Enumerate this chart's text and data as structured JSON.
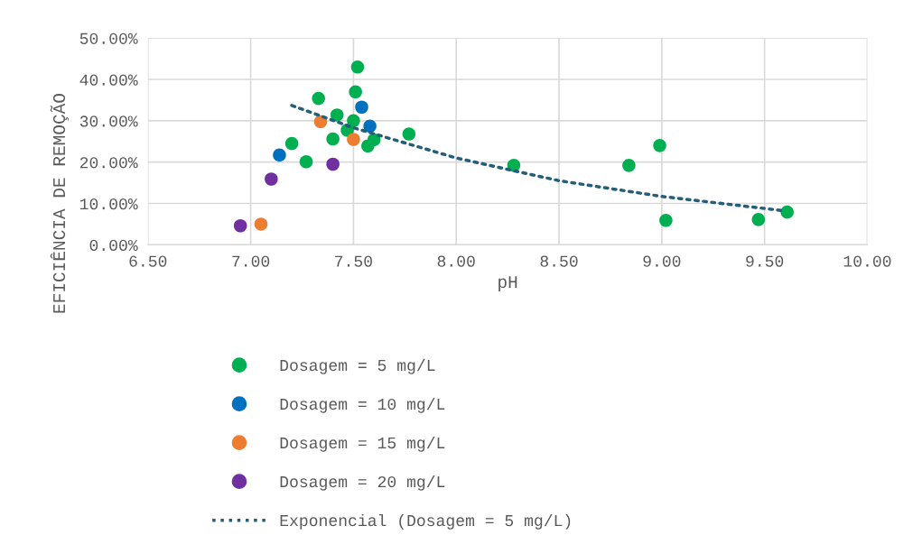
{
  "chart_data": {
    "type": "scatter",
    "xlabel": "pH",
    "ylabel": "EFICIÊNCIA DE REMOÇÃO",
    "xlim": [
      6.5,
      10.0
    ],
    "xticks": [
      {
        "value": 6.5,
        "label": "6.50"
      },
      {
        "value": 7.0,
        "label": "7.00"
      },
      {
        "value": 7.5,
        "label": "7.50"
      },
      {
        "value": 8.0,
        "label": "8.00"
      },
      {
        "value": 8.5,
        "label": "8.50"
      },
      {
        "value": 9.0,
        "label": "9.00"
      },
      {
        "value": 9.5,
        "label": "9.50"
      },
      {
        "value": 10.0,
        "label": "10.00"
      }
    ],
    "ylim": [
      0,
      50
    ],
    "yticks": [
      {
        "value": 0,
        "label": "0.00%"
      },
      {
        "value": 10,
        "label": "10.00%"
      },
      {
        "value": 20,
        "label": "20.00%"
      },
      {
        "value": 30,
        "label": "30.00%"
      },
      {
        "value": 40,
        "label": "40.00%"
      },
      {
        "value": 50,
        "label": "50.00%"
      }
    ],
    "grid": true,
    "legend": "bottom",
    "marker": "circle",
    "series": [
      {
        "name": "Dosagem = 5 mg/L",
        "color": "#00b050",
        "x": [
          7.52,
          7.51,
          7.33,
          7.42,
          7.5,
          7.47,
          7.4,
          7.2,
          7.27,
          7.6,
          7.57,
          7.77,
          8.28,
          8.84,
          8.99,
          9.02,
          9.47,
          9.61
        ],
        "values": [
          43.0,
          37.0,
          35.4,
          31.4,
          30.0,
          27.7,
          25.6,
          24.5,
          20.1,
          25.4,
          23.9,
          26.8,
          19.2,
          19.2,
          24.0,
          5.9,
          6.1,
          7.9
        ]
      },
      {
        "name": "Dosagem = 10 mg/L",
        "color": "#0070c0",
        "x": [
          7.54,
          7.58,
          7.14
        ],
        "values": [
          33.3,
          28.7,
          21.7
        ]
      },
      {
        "name": "Dosagem = 15 mg/L",
        "color": "#ed7d31",
        "x": [
          7.34,
          7.5,
          7.05
        ],
        "values": [
          29.8,
          25.5,
          5.0
        ]
      },
      {
        "name": "Dosagem = 20 mg/L",
        "color": "#7030a0",
        "x": [
          7.4,
          7.1,
          6.95
        ],
        "values": [
          19.5,
          15.9,
          4.6
        ]
      },
      {
        "name": "Exponencial (Dosagem = 5 mg/L)",
        "type": "line",
        "line_style": "dotted",
        "marker": "none",
        "color": "#255e79",
        "x": [
          7.2,
          7.5,
          8.0,
          8.5,
          9.0,
          9.6
        ],
        "values": [
          33.7,
          28.3,
          21.0,
          15.5,
          11.7,
          8.2
        ]
      }
    ]
  }
}
